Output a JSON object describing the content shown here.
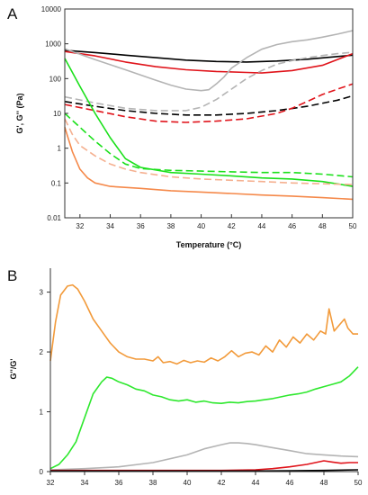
{
  "chart_data": [
    {
      "type": "line",
      "panel_label": "A",
      "xlabel": "Temperature (°C)",
      "ylabel": "G', G'' (Pa)",
      "yscale": "log",
      "xlim": [
        31,
        50
      ],
      "ylim": [
        0.01,
        10000
      ],
      "xticks": [
        "32",
        "34",
        "36",
        "38",
        "40",
        "42",
        "44",
        "46",
        "48",
        "50"
      ],
      "yticks": [
        "0.01",
        "0.1",
        "1",
        "10",
        "100",
        "1000",
        "10000"
      ],
      "series": [
        {
          "color": "#000000",
          "dash": "solid",
          "points": [
            [
              31,
              650
            ],
            [
              33,
              560
            ],
            [
              35,
              470
            ],
            [
              37,
              400
            ],
            [
              39,
              340
            ],
            [
              41,
              310
            ],
            [
              43,
              300
            ],
            [
              45,
              320
            ],
            [
              47,
              360
            ],
            [
              49,
              430
            ],
            [
              50,
              470
            ]
          ]
        },
        {
          "color": "#000000",
          "dash": "dashed",
          "points": [
            [
              31,
              22
            ],
            [
              33,
              16
            ],
            [
              35,
              12
            ],
            [
              37,
              10
            ],
            [
              39,
              9
            ],
            [
              41,
              9
            ],
            [
              43,
              10
            ],
            [
              45,
              12
            ],
            [
              47,
              16
            ],
            [
              49,
              24
            ],
            [
              50,
              32
            ]
          ]
        },
        {
          "color": "#e0141b",
          "dash": "solid",
          "points": [
            [
              31,
              600
            ],
            [
              33,
              450
            ],
            [
              35,
              300
            ],
            [
              37,
              220
            ],
            [
              39,
              180
            ],
            [
              41,
              160
            ],
            [
              43,
              150
            ],
            [
              44,
              145
            ],
            [
              46,
              170
            ],
            [
              48,
              240
            ],
            [
              50,
              520
            ]
          ]
        },
        {
          "color": "#e0141b",
          "dash": "dashed",
          "points": [
            [
              31,
              18
            ],
            [
              33,
              12
            ],
            [
              35,
              8
            ],
            [
              37,
              6
            ],
            [
              39,
              5.5
            ],
            [
              41,
              6
            ],
            [
              43,
              7
            ],
            [
              45,
              10
            ],
            [
              46,
              14
            ],
            [
              47,
              22
            ],
            [
              48,
              35
            ],
            [
              49,
              50
            ],
            [
              50,
              70
            ]
          ]
        },
        {
          "color": "#b4b4b4",
          "dash": "solid",
          "points": [
            [
              31,
              720
            ],
            [
              33,
              350
            ],
            [
              35,
              180
            ],
            [
              37,
              90
            ],
            [
              38,
              65
            ],
            [
              39,
              50
            ],
            [
              40,
              45
            ],
            [
              40.5,
              48
            ],
            [
              41,
              70
            ],
            [
              41.5,
              110
            ],
            [
              42,
              200
            ],
            [
              43,
              400
            ],
            [
              44,
              700
            ],
            [
              45,
              950
            ],
            [
              46,
              1150
            ],
            [
              47,
              1300
            ],
            [
              48,
              1550
            ],
            [
              49,
              1900
            ],
            [
              50,
              2400
            ]
          ]
        },
        {
          "color": "#b4b4b4",
          "dash": "dashed",
          "points": [
            [
              31,
              30
            ],
            [
              33,
              20
            ],
            [
              35,
              14
            ],
            [
              37,
              12
            ],
            [
              39,
              12
            ],
            [
              40,
              15
            ],
            [
              41,
              25
            ],
            [
              42,
              50
            ],
            [
              43,
              100
            ],
            [
              44,
              170
            ],
            [
              45,
              260
            ],
            [
              46,
              330
            ],
            [
              47,
              400
            ],
            [
              48,
              460
            ],
            [
              49,
              520
            ],
            [
              50,
              570
            ]
          ]
        },
        {
          "color": "#1be01b",
          "dash": "solid",
          "points": [
            [
              31,
              380
            ],
            [
              32,
              60
            ],
            [
              33,
              10
            ],
            [
              34,
              2
            ],
            [
              35,
              0.5
            ],
            [
              36,
              0.28
            ],
            [
              38,
              0.2
            ],
            [
              40,
              0.18
            ],
            [
              42,
              0.16
            ],
            [
              44,
              0.14
            ],
            [
              46,
              0.13
            ],
            [
              48,
              0.11
            ],
            [
              50,
              0.08
            ]
          ]
        },
        {
          "color": "#1be01b",
          "dash": "dashed",
          "points": [
            [
              31,
              10
            ],
            [
              32,
              4
            ],
            [
              33,
              1.6
            ],
            [
              34,
              0.7
            ],
            [
              35,
              0.35
            ],
            [
              36,
              0.26
            ],
            [
              38,
              0.23
            ],
            [
              40,
              0.22
            ],
            [
              42,
              0.21
            ],
            [
              44,
              0.2
            ],
            [
              46,
              0.2
            ],
            [
              48,
              0.18
            ],
            [
              50,
              0.15
            ]
          ]
        },
        {
          "color": "#f5894a",
          "dash": "solid",
          "points": [
            [
              31,
              4
            ],
            [
              31.5,
              0.8
            ],
            [
              32,
              0.25
            ],
            [
              32.5,
              0.14
            ],
            [
              33,
              0.1
            ],
            [
              34,
              0.08
            ],
            [
              36,
              0.07
            ],
            [
              38,
              0.06
            ],
            [
              40,
              0.055
            ],
            [
              42,
              0.05
            ],
            [
              44,
              0.045
            ],
            [
              46,
              0.042
            ],
            [
              48,
              0.038
            ],
            [
              50,
              0.034
            ]
          ]
        },
        {
          "color": "#f5b090",
          "dash": "dashed",
          "points": [
            [
              31,
              7
            ],
            [
              31.5,
              2.5
            ],
            [
              32,
              1.2
            ],
            [
              33,
              0.6
            ],
            [
              34,
              0.35
            ],
            [
              35,
              0.25
            ],
            [
              36,
              0.2
            ],
            [
              38,
              0.15
            ],
            [
              40,
              0.13
            ],
            [
              42,
              0.12
            ],
            [
              44,
              0.11
            ],
            [
              46,
              0.1
            ],
            [
              48,
              0.095
            ],
            [
              50,
              0.09
            ]
          ]
        }
      ]
    },
    {
      "type": "line",
      "panel_label": "B",
      "xlabel": "",
      "ylabel": "G''/G'",
      "xlim": [
        32,
        50
      ],
      "ylim": [
        0,
        3.4
      ],
      "xticks": [
        "32",
        "34",
        "36",
        "38",
        "40",
        "42",
        "44",
        "46",
        "48",
        "50"
      ],
      "yticks": [
        "0",
        "1",
        "2",
        "3"
      ],
      "series": [
        {
          "color": "#f29a3a",
          "points": [
            [
              32,
              1.85
            ],
            [
              32.3,
              2.5
            ],
            [
              32.6,
              2.95
            ],
            [
              33,
              3.1
            ],
            [
              33.3,
              3.12
            ],
            [
              33.6,
              3.05
            ],
            [
              34,
              2.85
            ],
            [
              34.5,
              2.55
            ],
            [
              35,
              2.35
            ],
            [
              35.5,
              2.15
            ],
            [
              36,
              2.0
            ],
            [
              36.5,
              1.92
            ],
            [
              37,
              1.88
            ],
            [
              37.5,
              1.88
            ],
            [
              38,
              1.85
            ],
            [
              38.3,
              1.92
            ],
            [
              38.6,
              1.82
            ],
            [
              39,
              1.84
            ],
            [
              39.4,
              1.8
            ],
            [
              39.8,
              1.86
            ],
            [
              40.2,
              1.82
            ],
            [
              40.6,
              1.85
            ],
            [
              41,
              1.83
            ],
            [
              41.4,
              1.9
            ],
            [
              41.8,
              1.85
            ],
            [
              42.2,
              1.92
            ],
            [
              42.6,
              2.02
            ],
            [
              43,
              1.92
            ],
            [
              43.4,
              1.98
            ],
            [
              43.8,
              2.0
            ],
            [
              44.2,
              1.95
            ],
            [
              44.6,
              2.1
            ],
            [
              45,
              2.0
            ],
            [
              45.4,
              2.2
            ],
            [
              45.8,
              2.08
            ],
            [
              46.2,
              2.25
            ],
            [
              46.6,
              2.15
            ],
            [
              47,
              2.3
            ],
            [
              47.4,
              2.2
            ],
            [
              47.8,
              2.35
            ],
            [
              48.1,
              2.3
            ],
            [
              48.3,
              2.72
            ],
            [
              48.6,
              2.35
            ],
            [
              48.9,
              2.45
            ],
            [
              49.2,
              2.55
            ],
            [
              49.4,
              2.4
            ],
            [
              49.7,
              2.3
            ],
            [
              50,
              2.3
            ]
          ]
        },
        {
          "color": "#2ee82e",
          "points": [
            [
              32,
              0.05
            ],
            [
              32.5,
              0.12
            ],
            [
              33,
              0.28
            ],
            [
              33.5,
              0.5
            ],
            [
              34,
              0.9
            ],
            [
              34.5,
              1.3
            ],
            [
              35,
              1.5
            ],
            [
              35.3,
              1.58
            ],
            [
              35.6,
              1.56
            ],
            [
              36,
              1.5
            ],
            [
              36.5,
              1.45
            ],
            [
              37,
              1.38
            ],
            [
              37.5,
              1.35
            ],
            [
              38,
              1.28
            ],
            [
              38.5,
              1.25
            ],
            [
              39,
              1.2
            ],
            [
              39.5,
              1.18
            ],
            [
              40,
              1.2
            ],
            [
              40.5,
              1.16
            ],
            [
              41,
              1.18
            ],
            [
              41.5,
              1.15
            ],
            [
              42,
              1.14
            ],
            [
              42.5,
              1.16
            ],
            [
              43,
              1.15
            ],
            [
              43.5,
              1.17
            ],
            [
              44,
              1.18
            ],
            [
              44.5,
              1.2
            ],
            [
              45,
              1.22
            ],
            [
              45.5,
              1.25
            ],
            [
              46,
              1.28
            ],
            [
              46.5,
              1.3
            ],
            [
              47,
              1.33
            ],
            [
              47.5,
              1.38
            ],
            [
              48,
              1.42
            ],
            [
              48.5,
              1.46
            ],
            [
              49,
              1.5
            ],
            [
              49.5,
              1.6
            ],
            [
              50,
              1.75
            ]
          ]
        },
        {
          "color": "#b4b4b4",
          "points": [
            [
              32,
              0.03
            ],
            [
              34,
              0.05
            ],
            [
              36,
              0.08
            ],
            [
              38,
              0.15
            ],
            [
              40,
              0.28
            ],
            [
              41,
              0.38
            ],
            [
              42,
              0.45
            ],
            [
              42.5,
              0.48
            ],
            [
              43,
              0.48
            ],
            [
              43.5,
              0.47
            ],
            [
              44,
              0.45
            ],
            [
              45,
              0.4
            ],
            [
              46,
              0.35
            ],
            [
              47,
              0.3
            ],
            [
              48,
              0.28
            ],
            [
              49,
              0.26
            ],
            [
              50,
              0.25
            ]
          ]
        },
        {
          "color": "#e0141b",
          "points": [
            [
              32,
              0.02
            ],
            [
              34,
              0.02
            ],
            [
              36,
              0.02
            ],
            [
              38,
              0.02
            ],
            [
              40,
              0.02
            ],
            [
              42,
              0.02
            ],
            [
              44,
              0.03
            ],
            [
              45,
              0.05
            ],
            [
              46,
              0.08
            ],
            [
              47,
              0.12
            ],
            [
              47.5,
              0.15
            ],
            [
              48,
              0.18
            ],
            [
              48.5,
              0.16
            ],
            [
              49,
              0.14
            ],
            [
              49.5,
              0.15
            ],
            [
              50,
              0.15
            ]
          ]
        },
        {
          "color": "#000000",
          "points": [
            [
              32,
              0.01
            ],
            [
              36,
              0.01
            ],
            [
              40,
              0.01
            ],
            [
              44,
              0.01
            ],
            [
              46,
              0.015
            ],
            [
              48,
              0.02
            ],
            [
              50,
              0.03
            ]
          ]
        }
      ]
    }
  ]
}
